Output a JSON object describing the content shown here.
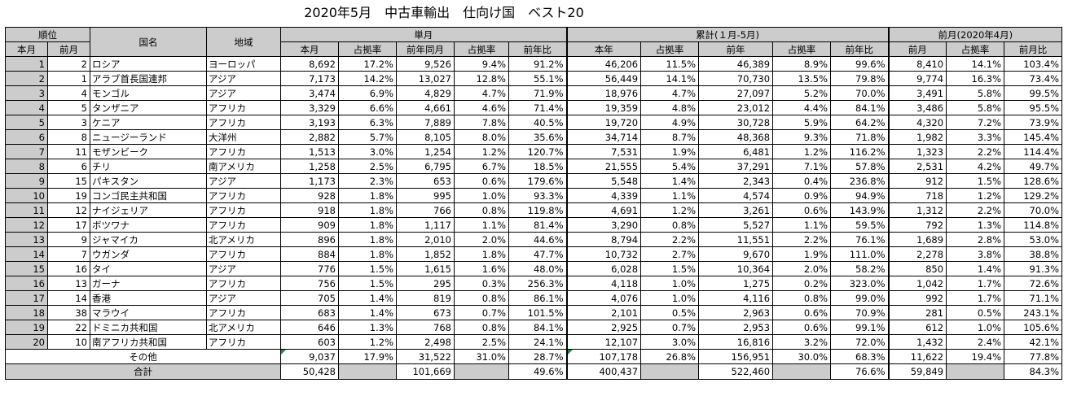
{
  "title": "2020年5月　中古車輸出　仕向け国　ベスト20",
  "headers": {
    "rank": "順位",
    "country": "国名",
    "region": "地域",
    "monthly": "単月",
    "cumulative": "累計(１月-5月)",
    "prev_month": "前月(2020年4月)",
    "rank_current": "本月",
    "rank_prev": "前月",
    "m_this": "本月",
    "m_share": "占拠率",
    "m_prev_year": "前年同月",
    "m_share2": "占拠率",
    "m_yoy": "前年比",
    "c_this": "本年",
    "c_share": "占拠率",
    "c_prev_year": "前年",
    "c_share2": "占拠率",
    "c_yoy": "前年比",
    "p_prev": "前月",
    "p_share": "占拠率",
    "p_mom": "前月比"
  },
  "rows": [
    {
      "rank": "1",
      "prev": "2",
      "country": "ロシア",
      "region": "ヨーロッパ",
      "m": "8,692",
      "ms": "17.2%",
      "py": "9,526",
      "pys": "9.4%",
      "yoy": "91.2%",
      "c": "46,206",
      "cs": "11.5%",
      "cp": "46,389",
      "cps": "8.9%",
      "cyoy": "99.6%",
      "pm": "8,410",
      "pms": "14.1%",
      "mom": "103.4%"
    },
    {
      "rank": "2",
      "prev": "1",
      "country": "アラブ首長国連邦",
      "region": "アジア",
      "m": "7,173",
      "ms": "14.2%",
      "py": "13,027",
      "pys": "12.8%",
      "yoy": "55.1%",
      "c": "56,449",
      "cs": "14.1%",
      "cp": "70,730",
      "cps": "13.5%",
      "cyoy": "79.8%",
      "pm": "9,774",
      "pms": "16.3%",
      "mom": "73.4%"
    },
    {
      "rank": "3",
      "prev": "4",
      "country": "モンゴル",
      "region": "アジア",
      "m": "3,474",
      "ms": "6.9%",
      "py": "4,829",
      "pys": "4.7%",
      "yoy": "71.9%",
      "c": "18,976",
      "cs": "4.7%",
      "cp": "27,097",
      "cps": "5.2%",
      "cyoy": "70.0%",
      "pm": "3,491",
      "pms": "5.8%",
      "mom": "99.5%"
    },
    {
      "rank": "4",
      "prev": "5",
      "country": "タンザニア",
      "region": "アフリカ",
      "m": "3,329",
      "ms": "6.6%",
      "py": "4,661",
      "pys": "4.6%",
      "yoy": "71.4%",
      "c": "19,359",
      "cs": "4.8%",
      "cp": "23,012",
      "cps": "4.4%",
      "cyoy": "84.1%",
      "pm": "3,486",
      "pms": "5.8%",
      "mom": "95.5%"
    },
    {
      "rank": "5",
      "prev": "3",
      "country": "ケニア",
      "region": "アフリカ",
      "m": "3,193",
      "ms": "6.3%",
      "py": "7,889",
      "pys": "7.8%",
      "yoy": "40.5%",
      "c": "19,720",
      "cs": "4.9%",
      "cp": "30,728",
      "cps": "5.9%",
      "cyoy": "64.2%",
      "pm": "4,320",
      "pms": "7.2%",
      "mom": "73.9%"
    },
    {
      "rank": "6",
      "prev": "8",
      "country": "ニュージーランド",
      "region": "大洋州",
      "m": "2,882",
      "ms": "5.7%",
      "py": "8,105",
      "pys": "8.0%",
      "yoy": "35.6%",
      "c": "34,714",
      "cs": "8.7%",
      "cp": "48,368",
      "cps": "9.3%",
      "cyoy": "71.8%",
      "pm": "1,982",
      "pms": "3.3%",
      "mom": "145.4%"
    },
    {
      "rank": "7",
      "prev": "11",
      "country": "モザンビーク",
      "region": "アフリカ",
      "m": "1,513",
      "ms": "3.0%",
      "py": "1,254",
      "pys": "1.2%",
      "yoy": "120.7%",
      "c": "7,531",
      "cs": "1.9%",
      "cp": "6,481",
      "cps": "1.2%",
      "cyoy": "116.2%",
      "pm": "1,323",
      "pms": "2.2%",
      "mom": "114.4%"
    },
    {
      "rank": "8",
      "prev": "6",
      "country": "チリ",
      "region": "南アメリカ",
      "m": "1,258",
      "ms": "2.5%",
      "py": "6,795",
      "pys": "6.7%",
      "yoy": "18.5%",
      "c": "21,555",
      "cs": "5.4%",
      "cp": "37,291",
      "cps": "7.1%",
      "cyoy": "57.8%",
      "pm": "2,531",
      "pms": "4.2%",
      "mom": "49.7%"
    },
    {
      "rank": "9",
      "prev": "15",
      "country": "パキスタン",
      "region": "アジア",
      "m": "1,173",
      "ms": "2.3%",
      "py": "653",
      "pys": "0.6%",
      "yoy": "179.6%",
      "c": "5,548",
      "cs": "1.4%",
      "cp": "2,343",
      "cps": "0.4%",
      "cyoy": "236.8%",
      "pm": "912",
      "pms": "1.5%",
      "mom": "128.6%"
    },
    {
      "rank": "10",
      "prev": "19",
      "country": "コンゴ民主共和国",
      "region": "アフリカ",
      "m": "928",
      "ms": "1.8%",
      "py": "995",
      "pys": "1.0%",
      "yoy": "93.3%",
      "c": "4,339",
      "cs": "1.1%",
      "cp": "4,574",
      "cps": "0.9%",
      "cyoy": "94.9%",
      "pm": "718",
      "pms": "1.2%",
      "mom": "129.2%"
    },
    {
      "rank": "11",
      "prev": "12",
      "country": "ナイジェリア",
      "region": "アフリカ",
      "m": "918",
      "ms": "1.8%",
      "py": "766",
      "pys": "0.8%",
      "yoy": "119.8%",
      "c": "4,691",
      "cs": "1.2%",
      "cp": "3,261",
      "cps": "0.6%",
      "cyoy": "143.9%",
      "pm": "1,312",
      "pms": "2.2%",
      "mom": "70.0%"
    },
    {
      "rank": "12",
      "prev": "17",
      "country": "ボツワナ",
      "region": "アフリカ",
      "m": "909",
      "ms": "1.8%",
      "py": "1,117",
      "pys": "1.1%",
      "yoy": "81.4%",
      "c": "3,290",
      "cs": "0.8%",
      "cp": "5,527",
      "cps": "1.1%",
      "cyoy": "59.5%",
      "pm": "792",
      "pms": "1.3%",
      "mom": "114.8%"
    },
    {
      "rank": "13",
      "prev": "9",
      "country": "ジャマイカ",
      "region": "北アメリカ",
      "m": "896",
      "ms": "1.8%",
      "py": "2,010",
      "pys": "2.0%",
      "yoy": "44.6%",
      "c": "8,794",
      "cs": "2.2%",
      "cp": "11,551",
      "cps": "2.2%",
      "cyoy": "76.1%",
      "pm": "1,689",
      "pms": "2.8%",
      "mom": "53.0%"
    },
    {
      "rank": "14",
      "prev": "7",
      "country": "ウガンダ",
      "region": "アフリカ",
      "m": "884",
      "ms": "1.8%",
      "py": "1,852",
      "pys": "1.8%",
      "yoy": "47.7%",
      "c": "10,732",
      "cs": "2.7%",
      "cp": "9,670",
      "cps": "1.9%",
      "cyoy": "111.0%",
      "pm": "2,278",
      "pms": "3.8%",
      "mom": "38.8%"
    },
    {
      "rank": "15",
      "prev": "16",
      "country": "タイ",
      "region": "アジア",
      "m": "776",
      "ms": "1.5%",
      "py": "1,615",
      "pys": "1.6%",
      "yoy": "48.0%",
      "c": "6,028",
      "cs": "1.5%",
      "cp": "10,364",
      "cps": "2.0%",
      "cyoy": "58.2%",
      "pm": "850",
      "pms": "1.4%",
      "mom": "91.3%"
    },
    {
      "rank": "16",
      "prev": "13",
      "country": "ガーナ",
      "region": "アフリカ",
      "m": "756",
      "ms": "1.5%",
      "py": "295",
      "pys": "0.3%",
      "yoy": "256.3%",
      "c": "4,118",
      "cs": "1.0%",
      "cp": "1,275",
      "cps": "0.2%",
      "cyoy": "323.0%",
      "pm": "1,042",
      "pms": "1.7%",
      "mom": "72.6%"
    },
    {
      "rank": "17",
      "prev": "14",
      "country": "香港",
      "region": "アジア",
      "m": "705",
      "ms": "1.4%",
      "py": "819",
      "pys": "0.8%",
      "yoy": "86.1%",
      "c": "4,076",
      "cs": "1.0%",
      "cp": "4,116",
      "cps": "0.8%",
      "cyoy": "99.0%",
      "pm": "992",
      "pms": "1.7%",
      "mom": "71.1%"
    },
    {
      "rank": "18",
      "prev": "38",
      "country": "マラウイ",
      "region": "アフリカ",
      "m": "683",
      "ms": "1.4%",
      "py": "673",
      "pys": "0.7%",
      "yoy": "101.5%",
      "c": "2,101",
      "cs": "0.5%",
      "cp": "2,963",
      "cps": "0.6%",
      "cyoy": "70.9%",
      "pm": "281",
      "pms": "0.5%",
      "mom": "243.1%"
    },
    {
      "rank": "19",
      "prev": "22",
      "country": "ドミニカ共和国",
      "region": "北アメリカ",
      "m": "646",
      "ms": "1.3%",
      "py": "768",
      "pys": "0.8%",
      "yoy": "84.1%",
      "c": "2,925",
      "cs": "0.7%",
      "cp": "2,953",
      "cps": "0.6%",
      "cyoy": "99.1%",
      "pm": "612",
      "pms": "1.0%",
      "mom": "105.6%"
    },
    {
      "rank": "20",
      "prev": "10",
      "country": "南アフリカ共和国",
      "region": "アフリカ",
      "m": "603",
      "ms": "1.2%",
      "py": "2,498",
      "pys": "2.5%",
      "yoy": "24.1%",
      "c": "12,107",
      "cs": "3.0%",
      "cp": "16,816",
      "cps": "3.2%",
      "cyoy": "72.0%",
      "pm": "1,432",
      "pms": "2.4%",
      "mom": "42.1%"
    }
  ],
  "others": {
    "label": "その他",
    "m": "9,037",
    "ms": "17.9%",
    "py": "31,522",
    "pys": "31.0%",
    "yoy": "28.7%",
    "c": "107,178",
    "cs": "26.8%",
    "cp": "156,951",
    "cps": "30.0%",
    "cyoy": "68.3%",
    "pm": "11,622",
    "pms": "19.4%",
    "mom": "77.8%"
  },
  "total": {
    "label": "合計",
    "m": "50,428",
    "py": "101,669",
    "yoy": "49.6%",
    "c": "400,437",
    "cp": "522,460",
    "cyoy": "76.6%",
    "pm": "59,849",
    "mom": "84.3%"
  }
}
